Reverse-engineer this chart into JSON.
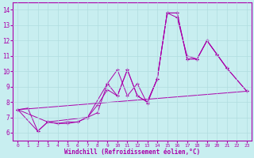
{
  "xlabel": "Windchill (Refroidissement éolien,°C)",
  "bg_color": "#c8eef0",
  "line_color": "#aa00aa",
  "grid_color": "#b0dde0",
  "xlim": [
    -0.5,
    23.5
  ],
  "ylim": [
    5.5,
    14.5
  ],
  "xticks": [
    0,
    1,
    2,
    3,
    4,
    5,
    6,
    7,
    8,
    9,
    10,
    11,
    12,
    13,
    14,
    15,
    16,
    17,
    18,
    19,
    20,
    21,
    22,
    23
  ],
  "yticks": [
    6,
    7,
    8,
    9,
    10,
    11,
    12,
    13,
    14
  ],
  "series": [
    {
      "x": [
        0,
        1,
        2,
        3,
        4,
        5,
        6,
        7,
        8,
        9,
        10,
        11,
        12,
        13,
        14,
        15,
        16,
        17,
        18,
        19,
        20,
        21
      ],
      "y": [
        7.5,
        7.6,
        6.1,
        6.7,
        6.6,
        6.6,
        6.7,
        7.0,
        7.3,
        9.2,
        10.1,
        8.4,
        9.2,
        7.9,
        9.5,
        13.8,
        13.8,
        10.8,
        10.8,
        12.0,
        11.1,
        10.2
      ]
    },
    {
      "x": [
        0,
        23
      ],
      "y": [
        7.5,
        8.7
      ]
    },
    {
      "x": [
        0,
        2,
        3,
        4,
        5,
        6,
        7,
        8,
        9,
        10,
        11,
        12,
        13,
        14,
        15,
        16,
        17,
        18,
        19,
        20,
        21,
        23
      ],
      "y": [
        7.5,
        6.1,
        6.7,
        6.6,
        6.7,
        6.7,
        7.0,
        7.8,
        8.8,
        8.4,
        10.1,
        8.4,
        8.0,
        9.5,
        13.8,
        13.5,
        11.0,
        10.8,
        12.0,
        11.1,
        10.2,
        8.7
      ]
    },
    {
      "x": [
        0,
        3,
        7,
        9,
        10,
        11,
        12,
        13,
        14,
        15,
        16,
        17,
        18,
        19,
        20,
        21,
        23
      ],
      "y": [
        7.5,
        6.7,
        7.0,
        9.2,
        8.4,
        10.1,
        8.4,
        8.0,
        9.5,
        13.8,
        13.8,
        10.8,
        10.8,
        12.0,
        11.1,
        10.2,
        8.7
      ]
    }
  ]
}
